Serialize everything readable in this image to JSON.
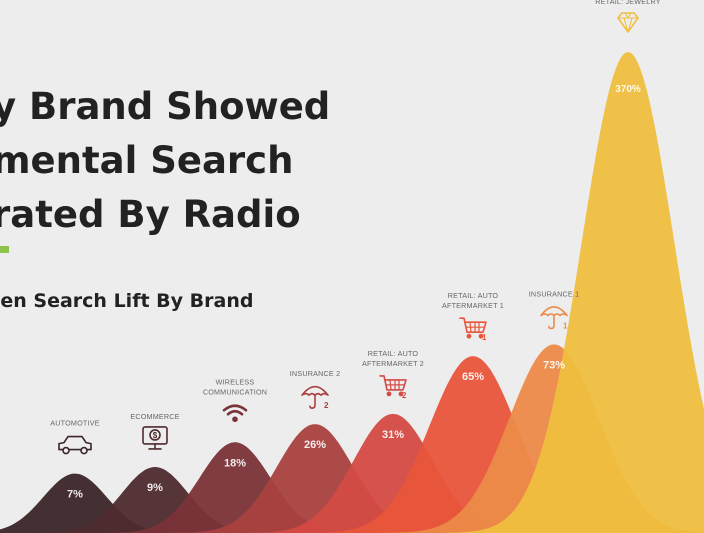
{
  "headline": {
    "lines": [
      "y Brand Showed",
      "mental Search",
      "rated By Radio"
    ]
  },
  "subtitle": "ven Search Lift By Brand",
  "colors": {
    "background": "#ededed",
    "accent": "#8cc34a",
    "text": "#222222",
    "label": "#666666"
  },
  "chart_data": {
    "type": "area",
    "categories": [
      "AUTOMOTIVE",
      "ECOMMERCE",
      "WIRELESS COMMUNICATION",
      "INSURANCE 2",
      "RETAIL: AUTO AFTERMARKET 2",
      "RETAIL: AUTO AFTERMARKET 1",
      "INSURANCE 1",
      "RETAIL: JEWELRY"
    ],
    "series": [
      {
        "values": [
          7,
          9,
          18,
          26,
          31,
          65,
          73,
          370
        ]
      }
    ],
    "value_labels": [
      "7%",
      "9%",
      "18%",
      "26%",
      "31%",
      "65%",
      "73%",
      "370%"
    ],
    "category_lines": [
      [
        "AUTOMOTIVE"
      ],
      [
        "ECOMMERCE"
      ],
      [
        "WIRELESS",
        "COMMUNICATION"
      ],
      [
        "INSURANCE 2"
      ],
      [
        "RETAIL: AUTO",
        "AFTERMARKET 2"
      ],
      [
        "RETAIL: AUTO",
        "AFTERMARKET 1"
      ],
      [
        "INSURANCE 1"
      ],
      [
        "RETAIL: JEWELRY"
      ]
    ],
    "icons": [
      "car-icon",
      "monitor-dollar-icon",
      "wifi-icon",
      "umbrella-icon",
      "cart-icon",
      "cart-icon",
      "umbrella-icon",
      "diamond-icon"
    ],
    "icon_badges": [
      "",
      "",
      "",
      "2",
      "2",
      "1",
      "1",
      ""
    ],
    "colors": [
      "#3b2528",
      "#4e2b2f",
      "#7a3338",
      "#a9413f",
      "#d44a45",
      "#e8553a",
      "#ec8a49",
      "#efbf3f"
    ],
    "ylim": [
      0,
      370
    ]
  }
}
